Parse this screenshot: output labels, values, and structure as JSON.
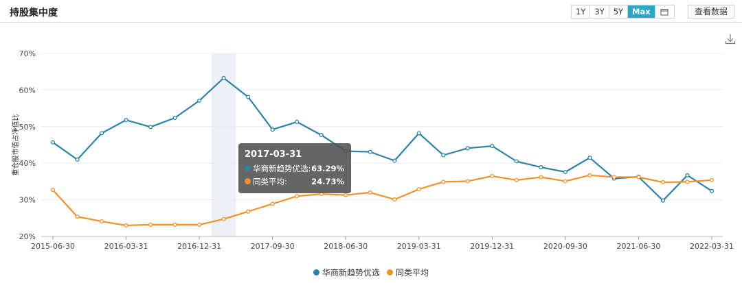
{
  "header": {
    "title": "持股集中度",
    "ranges": [
      "1Y",
      "3Y",
      "5Y",
      "Max"
    ],
    "active_range": "Max",
    "view_data_label": "查看数据",
    "calendar_icon": "calendar-icon",
    "download_icon": "download-icon"
  },
  "colors": {
    "fund": "#2d82a6",
    "avg": "#f0912a",
    "accent": "#2ba6c5",
    "highlight_band": "#eef0f8"
  },
  "tooltip": {
    "date": "2017-03-31",
    "fund_label": "华商新趋势优选:",
    "fund_value": "63.29%",
    "avg_label": "同类平均:",
    "avg_value": "24.73%"
  },
  "legend": {
    "fund": "华商新趋势优选",
    "avg": "同类平均"
  },
  "chart_data": {
    "type": "line",
    "ylabel": "重仓股市值占净值比",
    "ylim": [
      20,
      70
    ],
    "yticks": [
      "20%",
      "30%",
      "40%",
      "50%",
      "60%",
      "70%"
    ],
    "xtick_labels": [
      "2015-06-30",
      "2016-03-31",
      "2016-12-31",
      "2017-09-30",
      "2018-06-30",
      "2019-03-31",
      "2019-12-31",
      "2020-09-30",
      "2021-06-30",
      "2022-03-31"
    ],
    "highlight_date": "2017-03-31",
    "grid": true,
    "legend_position": "bottom-center",
    "x": [
      "2015-06-30",
      "2015-09-30",
      "2015-12-31",
      "2016-03-31",
      "2016-06-30",
      "2016-09-30",
      "2016-12-31",
      "2017-03-31",
      "2017-06-30",
      "2017-09-30",
      "2017-12-31",
      "2018-03-31",
      "2018-06-30",
      "2018-09-30",
      "2018-12-31",
      "2019-03-31",
      "2019-06-30",
      "2019-09-30",
      "2019-12-31",
      "2020-03-31",
      "2020-06-30",
      "2020-09-30",
      "2020-12-31",
      "2021-03-31",
      "2021-06-30",
      "2021-09-30",
      "2021-12-31",
      "2022-03-31"
    ],
    "series": [
      {
        "name": "华商新趋势优选",
        "color": "#2d82a6",
        "values": [
          45.7,
          41.0,
          48.2,
          51.8,
          49.9,
          52.4,
          57.1,
          63.29,
          58.1,
          49.2,
          51.3,
          47.7,
          43.3,
          43.1,
          40.7,
          48.2,
          42.2,
          44.1,
          44.7,
          40.5,
          38.9,
          37.6,
          41.5,
          35.8,
          36.3,
          29.8,
          36.7,
          32.4
        ]
      },
      {
        "name": "同类平均",
        "color": "#f0912a",
        "values": [
          32.7,
          25.4,
          24.1,
          23.0,
          23.2,
          23.2,
          23.2,
          24.73,
          26.8,
          28.9,
          31.0,
          31.6,
          31.3,
          32.0,
          30.1,
          32.9,
          34.9,
          35.1,
          36.5,
          35.4,
          36.2,
          35.1,
          36.7,
          36.2,
          36.2,
          34.8,
          34.9,
          35.4
        ]
      }
    ]
  }
}
